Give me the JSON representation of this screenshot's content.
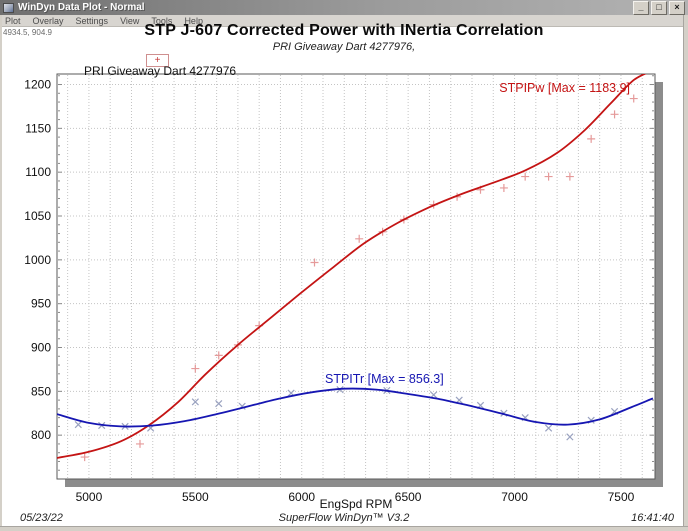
{
  "window": {
    "title": "WinDyn Data Plot - Normal",
    "buttons": {
      "minimize": "_",
      "maximize": "□",
      "close": "×"
    },
    "menu": [
      "Plot",
      "Overlay",
      "Settings",
      "View",
      "Tools",
      "Help"
    ],
    "coord_readout": "4934.5, 904.9"
  },
  "chart_data": {
    "type": "line",
    "title": "STP J-607 Corrected Power with INertia Correlation",
    "subtitle": "PRI Giveaway Dart 4277976,",
    "legend": {
      "label": "PRI Giveaway Dart 4277976",
      "marker": "plus",
      "position": "top-left"
    },
    "xlabel": "EngSpd RPM",
    "ylabel": "",
    "xlim": [
      4850,
      7660
    ],
    "ylim": [
      750,
      1212
    ],
    "x_ticks": [
      5000,
      5500,
      6000,
      6500,
      7000,
      7500
    ],
    "y_ticks": [
      800,
      850,
      900,
      950,
      1000,
      1050,
      1100,
      1150,
      1200
    ],
    "grid": {
      "on": true,
      "style": "dotted",
      "x_step": 100,
      "y_step": 50
    },
    "colors": {
      "grid": "#c4c4c4",
      "frame": "#5a5a5a",
      "shadow": "#8c8c8c"
    },
    "series": [
      {
        "name": "STPIPw",
        "annotation": "STPIPw [Max = 1183.9]",
        "max": 1183.9,
        "color": "#c41414",
        "marker_color": "#e59a9a",
        "marker": "plus",
        "curve": [
          [
            4850,
            774
          ],
          [
            5000,
            781
          ],
          [
            5150,
            793
          ],
          [
            5280,
            811
          ],
          [
            5420,
            838
          ],
          [
            5550,
            870
          ],
          [
            5700,
            903
          ],
          [
            5850,
            933
          ],
          [
            6000,
            963
          ],
          [
            6150,
            992
          ],
          [
            6300,
            1020
          ],
          [
            6450,
            1042
          ],
          [
            6600,
            1060
          ],
          [
            6750,
            1075
          ],
          [
            6900,
            1088
          ],
          [
            7050,
            1102
          ],
          [
            7200,
            1122
          ],
          [
            7330,
            1148
          ],
          [
            7450,
            1178
          ],
          [
            7560,
            1205
          ],
          [
            7650,
            1216
          ]
        ],
        "points": [
          [
            4980,
            775
          ],
          [
            5240,
            790
          ],
          [
            5500,
            876
          ],
          [
            5610,
            891
          ],
          [
            5700,
            903
          ],
          [
            5800,
            925
          ],
          [
            6060,
            997
          ],
          [
            6270,
            1024
          ],
          [
            6380,
            1032
          ],
          [
            6480,
            1046
          ],
          [
            6620,
            1063
          ],
          [
            6730,
            1072
          ],
          [
            6840,
            1080
          ],
          [
            6950,
            1082
          ],
          [
            7050,
            1095
          ],
          [
            7160,
            1095
          ],
          [
            7260,
            1095
          ],
          [
            7360,
            1138
          ],
          [
            7470,
            1166
          ],
          [
            7560,
            1184
          ]
        ]
      },
      {
        "name": "STPITr",
        "annotation": "STPITr [Max = 856.3]",
        "max": 856.3,
        "color": "#1616b2",
        "marker_color": "#9aa2c0",
        "marker": "x",
        "curve": [
          [
            4850,
            824
          ],
          [
            5000,
            814
          ],
          [
            5150,
            810
          ],
          [
            5300,
            811
          ],
          [
            5450,
            816
          ],
          [
            5600,
            824
          ],
          [
            5750,
            833
          ],
          [
            5900,
            842
          ],
          [
            6050,
            849
          ],
          [
            6200,
            853
          ],
          [
            6350,
            852
          ],
          [
            6500,
            847
          ],
          [
            6650,
            841
          ],
          [
            6800,
            833
          ],
          [
            6950,
            824
          ],
          [
            7100,
            815
          ],
          [
            7250,
            812
          ],
          [
            7400,
            818
          ],
          [
            7550,
            832
          ],
          [
            7650,
            842
          ]
        ],
        "points": [
          [
            4950,
            812
          ],
          [
            5060,
            811
          ],
          [
            5170,
            810
          ],
          [
            5290,
            808
          ],
          [
            5500,
            838
          ],
          [
            5610,
            836
          ],
          [
            5720,
            833
          ],
          [
            5950,
            848
          ],
          [
            6180,
            852
          ],
          [
            6400,
            851
          ],
          [
            6620,
            846
          ],
          [
            6740,
            840
          ],
          [
            6840,
            834
          ],
          [
            6950,
            825
          ],
          [
            7050,
            820
          ],
          [
            7160,
            808
          ],
          [
            7260,
            798
          ],
          [
            7360,
            817
          ],
          [
            7470,
            827
          ]
        ]
      }
    ]
  },
  "footer": {
    "date": "05/23/22",
    "version": "SuperFlow WinDyn™ V3.2",
    "time": "16:41:40"
  }
}
